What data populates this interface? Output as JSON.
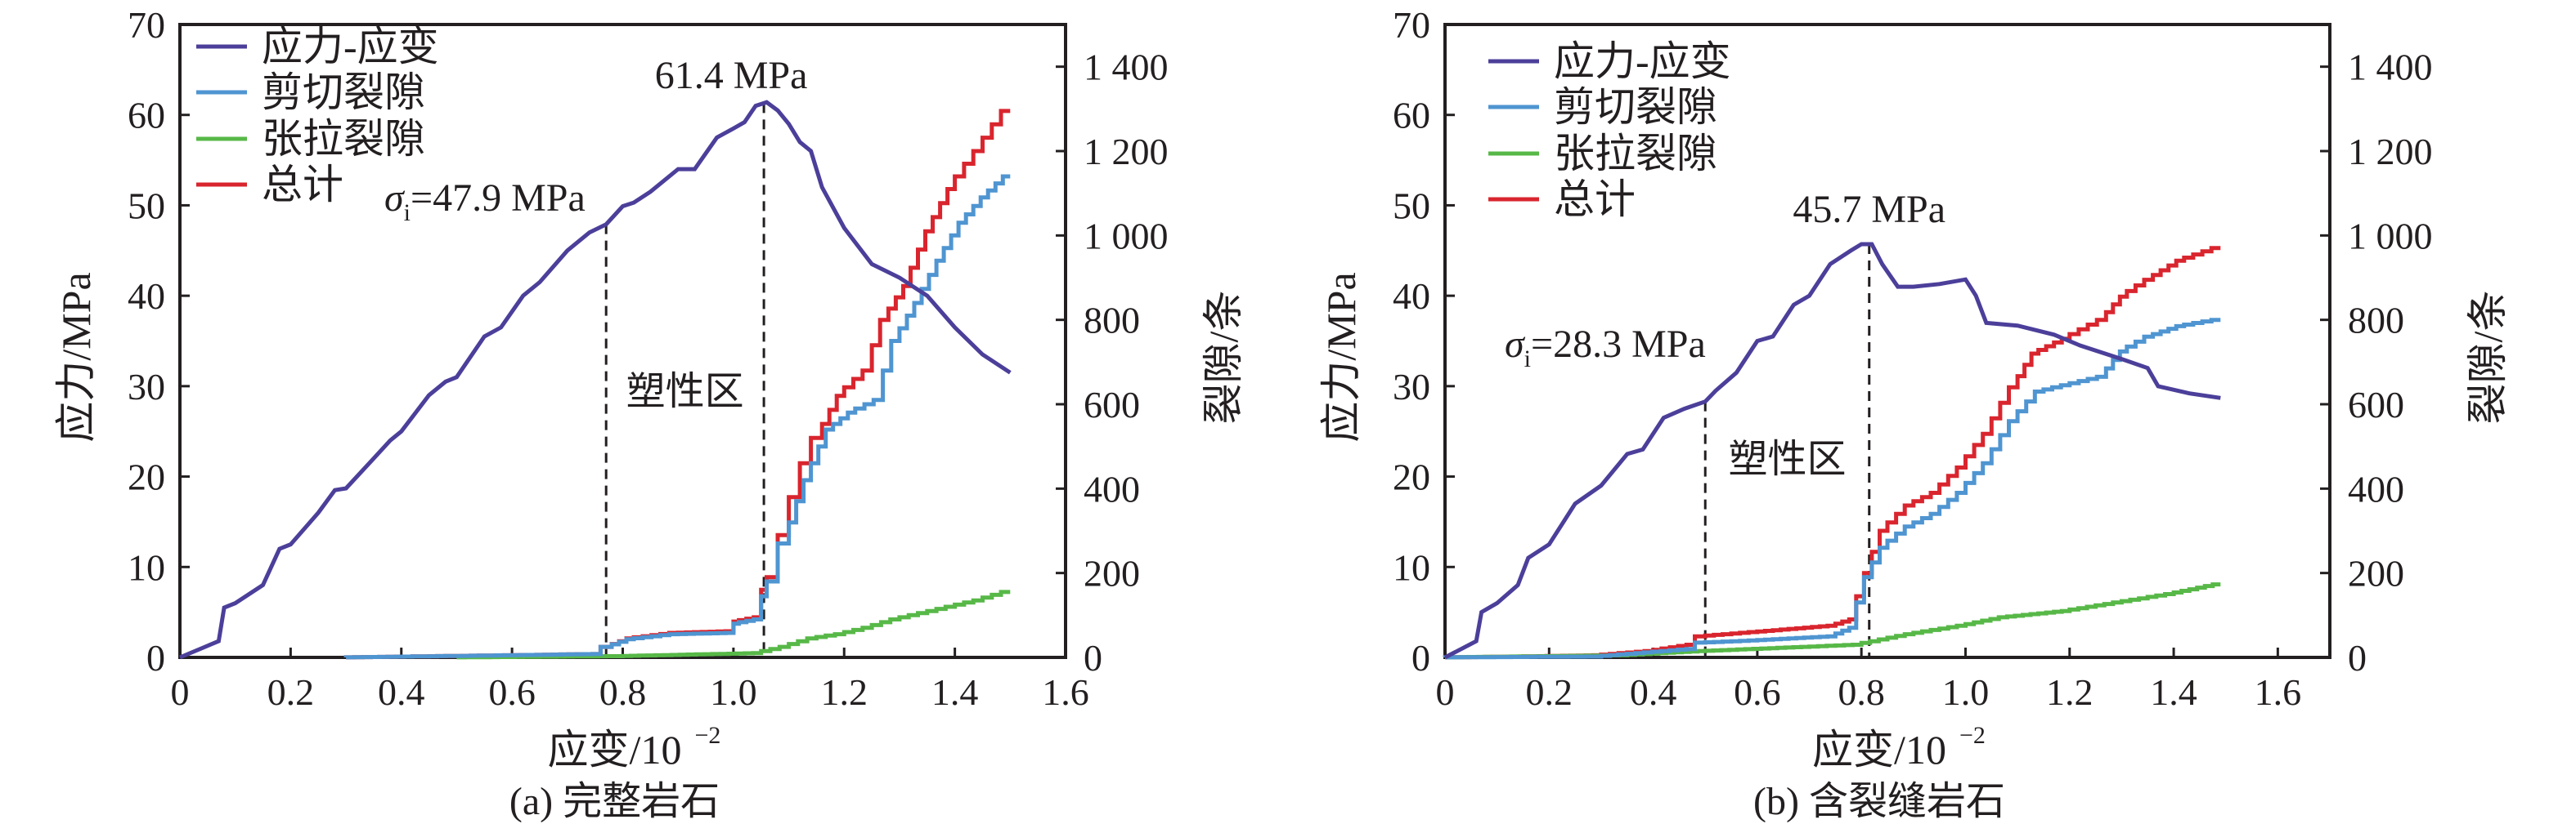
{
  "chart_data": [
    {
      "type": "line",
      "caption": "(a) 完整岩石",
      "xlabel": "应变/10",
      "xlabel_exp": "−2",
      "ylabel": "应力/MPa",
      "y2label": "裂隙/条",
      "xlim": [
        0,
        1.6
      ],
      "ylim": [
        0,
        70
      ],
      "y2lim": [
        0,
        1500
      ],
      "xticks": [
        "0",
        "0.2",
        "0.4",
        "0.6",
        "0.8",
        "1.0",
        "1.2",
        "1.4",
        "1.6"
      ],
      "xtick_values": [
        0,
        0.2,
        0.4,
        0.6,
        0.8,
        1.0,
        1.2,
        1.4,
        1.6
      ],
      "yticks": [
        "0",
        "10",
        "20",
        "30",
        "40",
        "50",
        "60",
        "70"
      ],
      "ytick_values": [
        0,
        10,
        20,
        30,
        40,
        50,
        60,
        70
      ],
      "y2ticks": [
        "0",
        "200",
        "400",
        "600",
        "800",
        "1 000",
        "1 200",
        "1 400"
      ],
      "y2tick_values": [
        0,
        200,
        400,
        600,
        800,
        1000,
        1200,
        1400
      ],
      "grid": false,
      "legend_position": "top-left",
      "annotations": {
        "peak_label": "61.4 MPa",
        "sigma_prefix": "σ",
        "sigma_sub": "i",
        "sigma_value": "=47.9 MPa",
        "plastic_zone": "塑性区",
        "dashed_lines_x": [
          0.77,
          1.055
        ]
      },
      "series": [
        {
          "name": "应力-应变",
          "axis": "left",
          "color": "#4b3f9a",
          "x": [
            0,
            0.07,
            0.08,
            0.1,
            0.15,
            0.18,
            0.2,
            0.25,
            0.28,
            0.3,
            0.35,
            0.38,
            0.4,
            0.45,
            0.48,
            0.5,
            0.55,
            0.58,
            0.62,
            0.65,
            0.7,
            0.74,
            0.77,
            0.8,
            0.82,
            0.85,
            0.9,
            0.93,
            0.97,
            1.0,
            1.02,
            1.04,
            1.06,
            1.08,
            1.1,
            1.12,
            1.14,
            1.16,
            1.2,
            1.25,
            1.3,
            1.35,
            1.4,
            1.45,
            1.5
          ],
          "y": [
            0,
            1.8,
            5.5,
            6,
            8,
            12,
            12.5,
            16,
            18.5,
            18.7,
            22,
            24,
            25,
            29,
            30.5,
            31,
            35.5,
            36.5,
            40,
            41.5,
            45,
            47,
            47.9,
            49.9,
            50.3,
            51.5,
            54,
            54,
            57.5,
            58.5,
            59.2,
            61,
            61.4,
            60.5,
            59,
            57,
            56,
            52,
            47.5,
            43.5,
            42,
            40,
            36.5,
            33.5,
            31.5
          ]
        },
        {
          "name": "剪切裂隙",
          "axis": "right",
          "color": "#4f95d1",
          "x": [
            0.3,
            0.6,
            0.76,
            0.78,
            0.82,
            0.9,
            1.0,
            1.01,
            1.05,
            1.06,
            1.08,
            1.1,
            1.14,
            1.18,
            1.22,
            1.27,
            1.3,
            1.34,
            1.38,
            1.42,
            1.46,
            1.5
          ],
          "y": [
            0,
            5,
            8,
            25,
            43,
            55,
            58,
            80,
            90,
            145,
            180,
            270,
            420,
            540,
            580,
            610,
            750,
            840,
            940,
            1030,
            1090,
            1140
          ]
        },
        {
          "name": "张拉裂隙",
          "axis": "right",
          "color": "#57b847",
          "x": [
            0.5,
            0.8,
            1.05,
            1.1,
            1.15,
            1.2,
            1.25,
            1.3,
            1.35,
            1.4,
            1.45,
            1.5
          ],
          "y": [
            0,
            3,
            10,
            25,
            45,
            55,
            70,
            90,
            105,
            120,
            135,
            155
          ]
        },
        {
          "name": "总计",
          "axis": "right",
          "color": "#d9252e",
          "x": [
            0.3,
            0.6,
            0.76,
            0.78,
            0.82,
            0.9,
            1.0,
            1.01,
            1.05,
            1.06,
            1.08,
            1.1,
            1.12,
            1.14,
            1.16,
            1.2,
            1.25,
            1.28,
            1.32,
            1.36,
            1.4,
            1.45,
            1.5
          ],
          "y": [
            0,
            5,
            8,
            25,
            45,
            58,
            62,
            85,
            95,
            160,
            190,
            290,
            380,
            460,
            520,
            620,
            680,
            800,
            880,
            1010,
            1110,
            1200,
            1295
          ]
        }
      ]
    },
    {
      "type": "line",
      "caption": "(b) 含裂缝岩石",
      "xlabel": "应变/10",
      "xlabel_exp": "−2",
      "ylabel": "应力/MPa",
      "y2label": "裂隙/条",
      "xlim": [
        0,
        1.7
      ],
      "ylim": [
        0,
        70
      ],
      "y2lim": [
        0,
        1500
      ],
      "xticks": [
        "0",
        "0.2",
        "0.4",
        "0.6",
        "0.8",
        "1.0",
        "1.2",
        "1.4",
        "1.6"
      ],
      "xtick_values": [
        0,
        0.2,
        0.4,
        0.6,
        0.8,
        1.0,
        1.2,
        1.4,
        1.6
      ],
      "yticks": [
        "0",
        "10",
        "20",
        "30",
        "40",
        "50",
        "60",
        "70"
      ],
      "ytick_values": [
        0,
        10,
        20,
        30,
        40,
        50,
        60,
        70
      ],
      "y2ticks": [
        "0",
        "200",
        "400",
        "600",
        "800",
        "1 000",
        "1 200",
        "1 400"
      ],
      "y2tick_values": [
        0,
        200,
        400,
        600,
        800,
        1000,
        1200,
        1400
      ],
      "grid": false,
      "legend_position": "top-left",
      "annotations": {
        "peak_label": "45.7 MPa",
        "sigma_prefix": "σ",
        "sigma_sub": "i",
        "sigma_value": "=28.3 MPa",
        "plastic_zone": "塑性区",
        "dashed_lines_x": [
          0.5,
          0.815
        ]
      },
      "series": [
        {
          "name": "应力-应变",
          "axis": "left",
          "color": "#4b3f9a",
          "x": [
            0,
            0.06,
            0.07,
            0.1,
            0.14,
            0.16,
            0.2,
            0.25,
            0.3,
            0.35,
            0.38,
            0.42,
            0.46,
            0.5,
            0.52,
            0.56,
            0.6,
            0.63,
            0.67,
            0.7,
            0.74,
            0.78,
            0.8,
            0.82,
            0.84,
            0.87,
            0.9,
            0.95,
            1.0,
            1.02,
            1.04,
            1.1,
            1.17,
            1.22,
            1.3,
            1.35,
            1.37,
            1.43,
            1.49
          ],
          "y": [
            0,
            1.8,
            5,
            6,
            8,
            11,
            12.5,
            17,
            19,
            22.5,
            23,
            26.5,
            27.5,
            28.3,
            29.5,
            31.5,
            35,
            35.5,
            39,
            40,
            43.5,
            45,
            45.7,
            45.7,
            43.5,
            41,
            41,
            41.3,
            41.8,
            40,
            37,
            36.7,
            35.7,
            34.5,
            33,
            32,
            30,
            29.2,
            28.7
          ]
        },
        {
          "name": "剪切裂隙",
          "axis": "right",
          "color": "#4f95d1",
          "x": [
            0,
            0.3,
            0.48,
            0.5,
            0.6,
            0.75,
            0.79,
            0.82,
            0.85,
            0.9,
            0.95,
            1.0,
            1.05,
            1.1,
            1.15,
            1.2,
            1.27,
            1.31,
            1.36,
            1.42,
            1.49
          ],
          "y": [
            0,
            2,
            20,
            35,
            40,
            50,
            70,
            190,
            260,
            310,
            340,
            390,
            460,
            560,
            630,
            645,
            665,
            725,
            760,
            785,
            800
          ]
        },
        {
          "name": "张拉裂隙",
          "axis": "right",
          "color": "#57b847",
          "x": [
            0,
            0.35,
            0.5,
            0.7,
            0.8,
            0.9,
            1.0,
            1.08,
            1.2,
            1.3,
            1.4,
            1.49
          ],
          "y": [
            0,
            5,
            15,
            25,
            30,
            55,
            75,
            95,
            110,
            130,
            150,
            173
          ]
        },
        {
          "name": "总计",
          "axis": "right",
          "color": "#d9252e",
          "x": [
            0,
            0.15,
            0.3,
            0.4,
            0.48,
            0.5,
            0.6,
            0.75,
            0.79,
            0.82,
            0.85,
            0.9,
            0.95,
            1.0,
            1.05,
            1.1,
            1.14,
            1.2,
            1.27,
            1.31,
            1.36,
            1.42,
            1.49
          ],
          "y": [
            0,
            2,
            5,
            15,
            30,
            50,
            60,
            75,
            90,
            200,
            300,
            360,
            390,
            450,
            530,
            640,
            720,
            755,
            800,
            855,
            895,
            940,
            970
          ]
        }
      ]
    }
  ]
}
